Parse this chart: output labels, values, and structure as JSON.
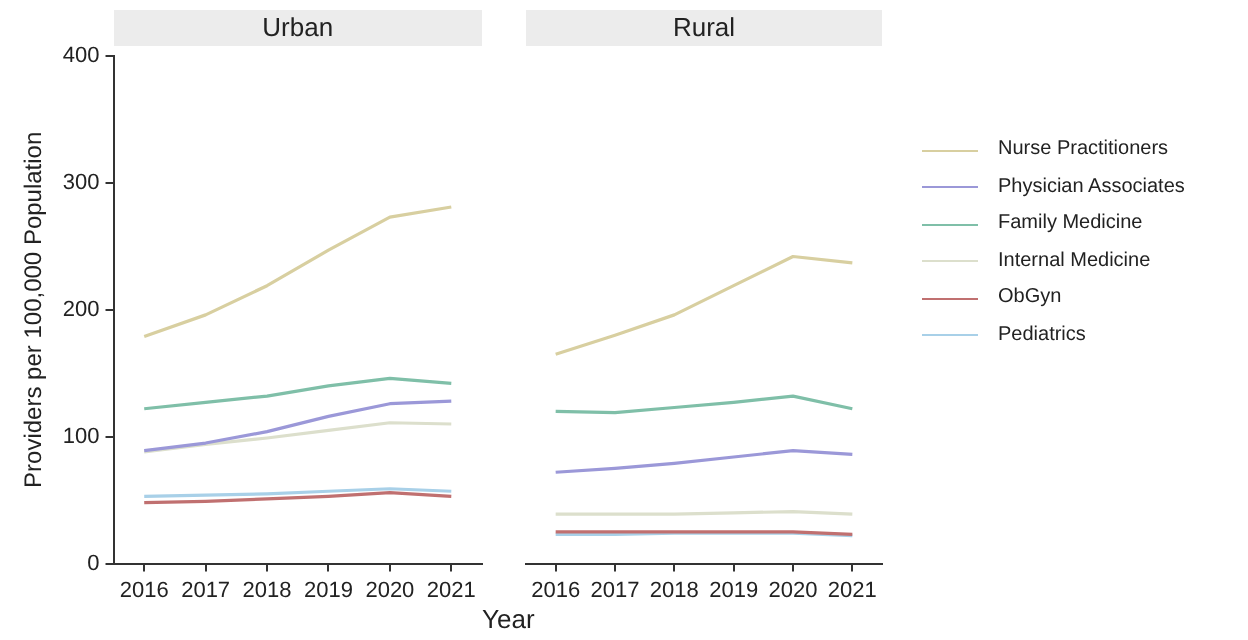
{
  "chart_data": [
    {
      "type": "line",
      "title": "Urban",
      "ylabel": "Providers per 100,000 Population",
      "categories": [
        "2016",
        "2017",
        "2018",
        "2019",
        "2020",
        "2021"
      ],
      "ylim": [
        0,
        400
      ],
      "yticks": [
        0,
        100,
        200,
        300,
        400
      ],
      "grid": false,
      "legend": false,
      "series": [
        {
          "color": "#d8cfa0",
          "values": [
            179,
            196,
            219,
            247,
            273,
            281
          ]
        },
        {
          "color": "#9b98d8",
          "values": [
            89,
            95,
            104,
            116,
            126,
            128
          ]
        },
        {
          "color": "#7fbfa8",
          "values": [
            122,
            127,
            132,
            140,
            146,
            142
          ]
        },
        {
          "color": "#dcdfcc",
          "values": [
            88,
            94,
            99,
            105,
            111,
            110
          ]
        },
        {
          "color": "#c07070",
          "values": [
            48,
            49,
            51,
            53,
            56,
            53
          ]
        },
        {
          "color": "#a8d0e8",
          "values": [
            53,
            54,
            55,
            57,
            59,
            57
          ]
        }
      ]
    },
    {
      "type": "line",
      "title": "Rural",
      "xlabel": "Year",
      "categories": [
        "2016",
        "2017",
        "2018",
        "2019",
        "2020",
        "2021"
      ],
      "ylim": [
        0,
        400
      ],
      "yticks": [
        0,
        100,
        200,
        300,
        400
      ],
      "tick_labels": "x",
      "grid": false,
      "legend": "right",
      "series": [
        {
          "name": "Nurse Practitioners",
          "color": "#d8cfa0",
          "values": [
            165,
            180,
            196,
            219,
            242,
            237
          ]
        },
        {
          "name": "Physician Associates",
          "color": "#9b98d8",
          "values": [
            72,
            75,
            79,
            84,
            89,
            86
          ]
        },
        {
          "name": "Family Medicine",
          "color": "#7fbfa8",
          "values": [
            120,
            119,
            123,
            127,
            132,
            122
          ]
        },
        {
          "name": "Internal Medicine",
          "color": "#dcdfcc",
          "values": [
            39,
            39,
            39,
            40,
            41,
            39
          ]
        },
        {
          "name": "ObGyn",
          "color": "#c07070",
          "values": [
            25,
            25,
            25,
            25,
            25,
            23
          ]
        },
        {
          "name": "Pediatrics",
          "color": "#a8d0e8",
          "values": [
            23,
            23,
            24,
            24,
            24,
            22
          ]
        }
      ]
    }
  ]
}
